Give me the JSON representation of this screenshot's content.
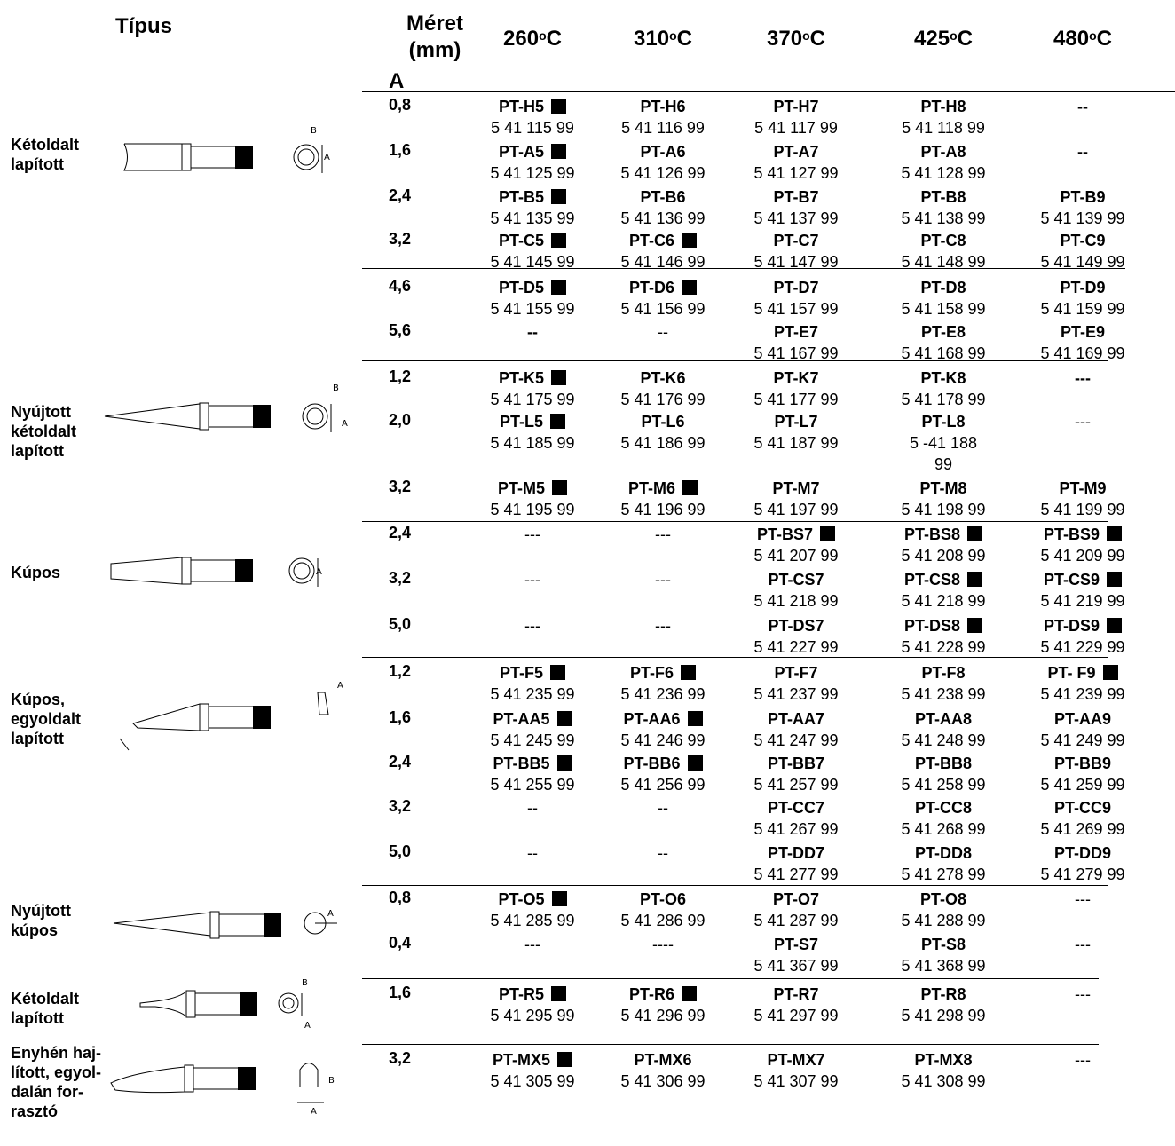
{
  "header": {
    "type": "Típus",
    "size_line1": "Méret",
    "size_line2": "(mm)",
    "size_sub": "A",
    "temps": [
      "260",
      "310",
      "370",
      "425",
      "480"
    ],
    "temp_deg": "o",
    "temp_unit": "C"
  },
  "groups": [
    {
      "label_lines": [
        "Kétoldalt",
        "lapított"
      ]
    },
    {
      "label_lines": [
        "Nyújtott",
        "kétoldalt",
        "lapított"
      ]
    },
    {
      "label_lines": [
        "Kúpos"
      ]
    },
    {
      "label_lines": [
        "Kúpos,",
        "egyoldalt",
        "lapított"
      ]
    },
    {
      "label_lines": [
        "Nyújtott",
        "kúpos"
      ]
    },
    {
      "label_lines": [
        "Kétoldalt",
        "lapított"
      ]
    },
    {
      "label_lines": [
        "Enyhén haj-",
        "lított, egyol-",
        "dalán for-",
        "rasztó"
      ]
    }
  ],
  "drawing_labels": {
    "a": "A",
    "b": "B"
  },
  "rows": [
    {
      "size": "0,8",
      "cells": [
        {
          "code": "PT-H5",
          "num": "5 41 115 99",
          "mark": true
        },
        {
          "code": "PT-H6",
          "num": "5 41 116 99"
        },
        {
          "code": "PT-H7",
          "num": "5 41 117 99"
        },
        {
          "code": "PT-H8",
          "num": "5 41 118 99"
        },
        {
          "dash": "--",
          "bold": true
        }
      ]
    },
    {
      "size": "1,6",
      "cells": [
        {
          "code": "PT-A5",
          "num": "5 41 125 99",
          "mark": true
        },
        {
          "code": "PT-A6",
          "num": "5 41 126 99"
        },
        {
          "code": "PT-A7",
          "num": "5 41 127 99"
        },
        {
          "code": "PT-A8",
          "num": "5 41 128 99"
        },
        {
          "dash": "--",
          "bold": true
        }
      ]
    },
    {
      "size": "2,4",
      "cells": [
        {
          "code": "PT-B5",
          "num": "5 41 135 99",
          "mark": true
        },
        {
          "code": "PT-B6",
          "num": "5 41 136 99"
        },
        {
          "code": "PT-B7",
          "num": "5 41 137 99"
        },
        {
          "code": "PT-B8",
          "num": "5 41 138 99"
        },
        {
          "code": "PT-B9",
          "num": "5 41 139 99"
        }
      ]
    },
    {
      "size": "3,2",
      "cells": [
        {
          "code": "PT-C5",
          "num": "5 41 145 99",
          "mark": true
        },
        {
          "code": "PT-C6",
          "num": "5 41 146 99",
          "mark": true
        },
        {
          "code": "PT-C7",
          "num": "5 41 147 99"
        },
        {
          "code": "PT-C8",
          "num": "5 41 148 99"
        },
        {
          "code": "PT-C9",
          "num": "5 41 149 99"
        }
      ]
    },
    {
      "size": "4,6",
      "cells": [
        {
          "code": "PT-D5",
          "num": "5 41 155 99",
          "mark": true
        },
        {
          "code": "PT-D6",
          "num": "5 41 156 99",
          "mark": true
        },
        {
          "code": "PT-D7",
          "num": "5 41 157 99"
        },
        {
          "code": "PT-D8",
          "num": "5 41 158 99"
        },
        {
          "code": "PT-D9",
          "num": "5 41 159 99"
        }
      ]
    },
    {
      "size": "5,6",
      "cells": [
        {
          "dash": "--",
          "bold": true
        },
        {
          "dash": "--"
        },
        {
          "code": "PT-E7",
          "num": "5 41 167 99"
        },
        {
          "code": "PT-E8",
          "num": "5 41 168 99"
        },
        {
          "code": "PT-E9",
          "num": "5 41 169 99"
        }
      ]
    },
    {
      "size": "1,2",
      "cells": [
        {
          "code": "PT-K5",
          "num": "5 41 175 99",
          "mark": true
        },
        {
          "code": "PT-K6",
          "num": "5 41 176 99"
        },
        {
          "code": "PT-K7",
          "num": "5 41 177 99"
        },
        {
          "code": "PT-K8",
          "num": "5 41 178 99"
        },
        {
          "dash": "---",
          "bold": true
        }
      ]
    },
    {
      "size": "2,0",
      "cells": [
        {
          "code": "PT-L5",
          "num": "5 41 185 99",
          "mark": true
        },
        {
          "code": "PT-L6",
          "num": "5 41 186 99"
        },
        {
          "code": "PT-L7",
          "num": "5 41 187 99"
        },
        {
          "code": "PT-L8",
          "num": "5 -41 188",
          "num2": "99"
        },
        {
          "dash": "---"
        }
      ]
    },
    {
      "size": "3,2",
      "cells": [
        {
          "code": "PT-M5",
          "num": "5 41 195 99",
          "mark": true
        },
        {
          "code": "PT-M6",
          "num": "5 41 196 99",
          "mark": true
        },
        {
          "code": "PT-M7",
          "num": "5 41 197 99"
        },
        {
          "code": "PT-M8",
          "num": "5 41 198 99"
        },
        {
          "code": "PT-M9",
          "num": "5 41 199 99"
        }
      ]
    },
    {
      "size": "2,4",
      "cells": [
        {
          "dash": "---"
        },
        {
          "dash": "---"
        },
        {
          "code": "PT-BS7",
          "num": "5 41 207 99",
          "mark": true
        },
        {
          "code": "PT-BS8",
          "num": "5 41 208 99",
          "mark": true
        },
        {
          "code": "PT-BS9",
          "num": "5 41 209 99",
          "mark": true
        }
      ]
    },
    {
      "size": "3,2",
      "cells": [
        {
          "dash": "---"
        },
        {
          "dash": "---"
        },
        {
          "code": "PT-CS7",
          "num": "5 41 218 99"
        },
        {
          "code": "PT-CS8",
          "num": "5 41 218 99",
          "mark": true
        },
        {
          "code": "PT-CS9",
          "num": "5 41 219 99",
          "mark": true
        }
      ]
    },
    {
      "size": "5,0",
      "cells": [
        {
          "dash": "---"
        },
        {
          "dash": "---"
        },
        {
          "code": "PT-DS7",
          "num": "5 41 227 99"
        },
        {
          "code": "PT-DS8",
          "num": "5 41 228 99",
          "mark": true
        },
        {
          "code": "PT-DS9",
          "num": "5 41 229 99",
          "mark": true
        }
      ]
    },
    {
      "size": "1,2",
      "cells": [
        {
          "code": "PT-F5",
          "num": "5 41 235 99",
          "mark": true
        },
        {
          "code": "PT-F6",
          "num": "5 41 236 99",
          "mark": true
        },
        {
          "code": "PT-F7",
          "num": "5 41 237 99"
        },
        {
          "code": "PT-F8",
          "num": "5 41 238 99"
        },
        {
          "code": "PT- F9",
          "num": "5 41 239 99",
          "mark": true
        }
      ]
    },
    {
      "size": "1,6",
      "cells": [
        {
          "code": "PT-AA5",
          "num": "5 41 245 99",
          "mark": true
        },
        {
          "code": "PT-AA6",
          "num": "5 41 246 99",
          "mark": true
        },
        {
          "code": "PT-AA7",
          "num": "5 41 247 99"
        },
        {
          "code": "PT-AA8",
          "num": "5 41 248 99"
        },
        {
          "code": "PT-AA9",
          "num": "5 41 249 99"
        }
      ]
    },
    {
      "size": "2,4",
      "cells": [
        {
          "code": "PT-BB5",
          "num": "5 41 255 99",
          "mark": true
        },
        {
          "code": "PT-BB6",
          "num": "5 41 256 99",
          "mark": true
        },
        {
          "code": "PT-BB7",
          "num": "5 41 257 99"
        },
        {
          "code": "PT-BB8",
          "num": "5 41 258 99"
        },
        {
          "code": "PT-BB9",
          "num": "5 41 259 99"
        }
      ]
    },
    {
      "size": "3,2",
      "cells": [
        {
          "dash": "--"
        },
        {
          "dash": "--"
        },
        {
          "code": "PT-CC7",
          "num": "5 41 267 99"
        },
        {
          "code": "PT-CC8",
          "num": "5 41 268 99"
        },
        {
          "code": "PT-CC9",
          "num": "5 41 269 99"
        }
      ]
    },
    {
      "size": "5,0",
      "cells": [
        {
          "dash": "--"
        },
        {
          "dash": "--"
        },
        {
          "code": "PT-DD7",
          "num": "5 41 277 99"
        },
        {
          "code": "PT-DD8",
          "num": "5 41 278 99"
        },
        {
          "code": "PT-DD9",
          "num": "5 41 279 99"
        }
      ]
    },
    {
      "size": "0,8",
      "cells": [
        {
          "code": "PT-O5",
          "num": "5 41 285 99",
          "mark": true
        },
        {
          "code": "PT-O6",
          "num": "5 41 286 99"
        },
        {
          "code": "PT-O7",
          "num": "5 41 287 99"
        },
        {
          "code": "PT-O8",
          "num": "5 41 288 99"
        },
        {
          "dash": "---"
        }
      ]
    },
    {
      "size": "0,4",
      "cells": [
        {
          "dash": "---"
        },
        {
          "dash": "----"
        },
        {
          "code": "PT-S7",
          "num": "5 41 367 99"
        },
        {
          "code": "PT-S8",
          "num": "5 41 368 99"
        },
        {
          "dash": "---"
        }
      ]
    },
    {
      "size": "1,6",
      "cells": [
        {
          "code": "PT-R5",
          "num": "5 41 295 99",
          "mark": true
        },
        {
          "code": "PT-R6",
          "num": "5 41 296 99",
          "mark": true
        },
        {
          "code": "PT-R7",
          "num": "5 41 297 99"
        },
        {
          "code": "PT-R8",
          "num": "5 41 298 99"
        },
        {
          "dash": "---"
        }
      ]
    },
    {
      "size": "3,2",
      "cells": [
        {
          "code": "PT-MX5",
          "num": "5 41 305 99",
          "mark": true
        },
        {
          "code": "PT-MX6",
          "num": "5 41 306 99"
        },
        {
          "code": "PT-MX7",
          "num": "5 41 307 99"
        },
        {
          "code": "PT-MX8",
          "num": "5 41 308 99"
        },
        {
          "dash": "---"
        }
      ]
    }
  ]
}
